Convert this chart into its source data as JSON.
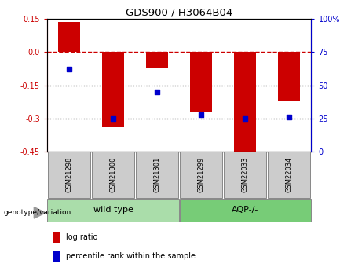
{
  "title": "GDS900 / H3064B04",
  "samples": [
    "GSM21298",
    "GSM21300",
    "GSM21301",
    "GSM21299",
    "GSM22033",
    "GSM22034"
  ],
  "log_ratios": [
    0.135,
    -0.34,
    -0.07,
    -0.27,
    -0.46,
    -0.22
  ],
  "percentile_ranks": [
    62,
    25,
    45,
    28,
    25,
    26
  ],
  "groups": [
    {
      "label": "wild type",
      "indices": [
        0,
        1,
        2
      ]
    },
    {
      "label": "AQP-/-",
      "indices": [
        3,
        4,
        5
      ]
    }
  ],
  "bar_color": "#CC0000",
  "dot_color": "#0000CC",
  "ylim_left": [
    -0.45,
    0.15
  ],
  "ylim_right": [
    0,
    100
  ],
  "yticks_left": [
    -0.45,
    -0.3,
    -0.15,
    0.0,
    0.15
  ],
  "yticks_right": [
    0,
    25,
    50,
    75,
    100
  ],
  "hline_zero_color": "#CC0000",
  "hline_dotted_values": [
    -0.15,
    -0.3
  ],
  "bg_color": "#ffffff",
  "group_bg_wild": "#aaddaa",
  "group_bg_aqp": "#77cc77",
  "sample_bg": "#cccccc",
  "legend_label_bar": "log ratio",
  "legend_label_dot": "percentile rank within the sample",
  "genotype_label": "genotype/variation",
  "bar_width": 0.5,
  "left_axis_color": "#CC0000",
  "right_axis_color": "#0000CC"
}
